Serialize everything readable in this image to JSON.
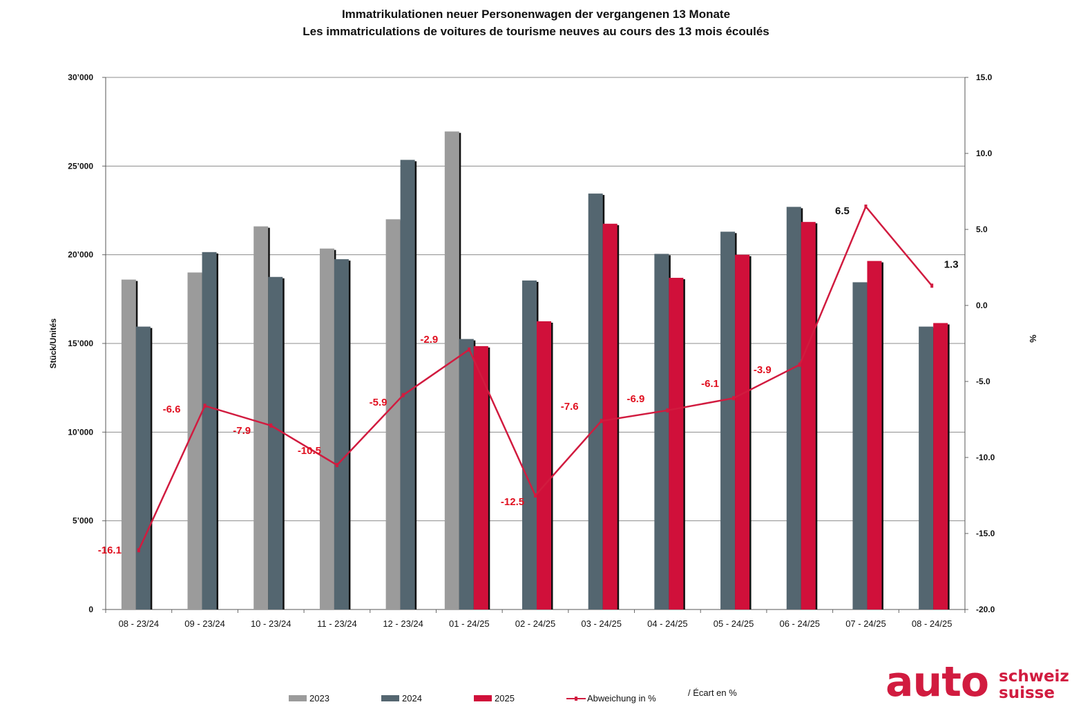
{
  "title": "Immatrikulationen neuer Personenwagen der vergangenen 13 Monate",
  "subtitle": "Les immatriculations de voitures de tourisme neuves au cours des 13 mois écoulés",
  "colors": {
    "s2023": "#9b9b9b",
    "s2024": "#546670",
    "s2025": "#d0103a",
    "line": "#d11b3f",
    "grid": "#8c8c8c"
  },
  "legend": {
    "s2023": "2023",
    "s2024": "2024",
    "s2025": "2025",
    "line": "Abweichung in %",
    "note": "/ Écart en %"
  },
  "logo": {
    "main": "auto",
    "top": "schweiz",
    "bottom": "suisse"
  },
  "chart_data": {
    "type": "bar",
    "title": "Immatrikulationen neuer Personenwagen der vergangenen 13 Monate",
    "ylabel": "Stück/Unités",
    "y2label": "%",
    "ylim": [
      0,
      30000
    ],
    "y2lim": [
      -20,
      15
    ],
    "y_ticks": [
      "0",
      "5’000",
      "10’000",
      "15’000",
      "20’000",
      "25’000",
      "30’000"
    ],
    "y2_ticks": [
      "-20.0",
      "-15.0",
      "-10.0",
      "-5.0",
      "0.0",
      "5.0",
      "10.0",
      "15.0"
    ],
    "grid": true,
    "legend_position": "bottom",
    "categories": [
      "08 - 23/24",
      "09 - 23/24",
      "10 - 23/24",
      "11 - 23/24",
      "12 - 23/24",
      "01 - 24/25",
      "02 - 24/25",
      "03 - 24/25",
      "04 - 24/25",
      "05 - 24/25",
      "06 - 24/25",
      "07 - 24/25",
      "08 - 24/25"
    ],
    "series": [
      {
        "name": "2023",
        "values": [
          18600,
          19000,
          21600,
          20350,
          22000,
          26950,
          null,
          null,
          null,
          null,
          null,
          null,
          null
        ]
      },
      {
        "name": "2024",
        "values": [
          15950,
          20150,
          18750,
          19750,
          25350,
          15250,
          18550,
          23450,
          20050,
          21300,
          22700,
          18450,
          15950
        ]
      },
      {
        "name": "2025",
        "values": [
          null,
          null,
          null,
          null,
          null,
          14850,
          16250,
          21750,
          18700,
          20000,
          21850,
          19650,
          16150
        ]
      }
    ],
    "line": {
      "name": "Abweichung in %",
      "values": [
        -16.1,
        -6.6,
        -7.9,
        -10.5,
        -5.9,
        -2.9,
        -12.5,
        -7.6,
        -6.9,
        -6.1,
        -3.9,
        6.5,
        1.3
      ],
      "labels": [
        "-16.1",
        "-6.6",
        "-7.9",
        "-10.5",
        "-5.9",
        "-2.9",
        "-12.5",
        "-7.6",
        "-6.9",
        "-6.1",
        "-3.9",
        "6.5",
        "1.3"
      ]
    }
  }
}
